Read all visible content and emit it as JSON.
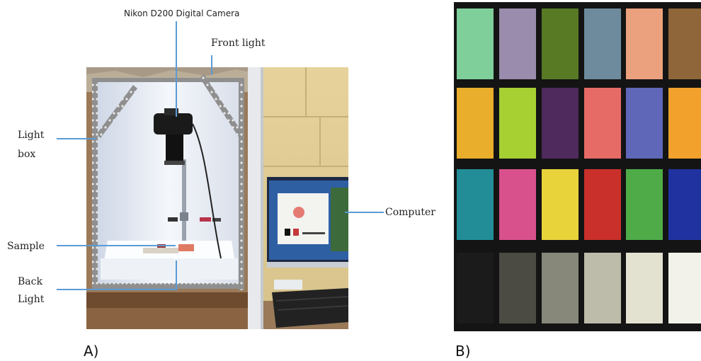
{
  "panel_a": {
    "letter": "A)",
    "labels": {
      "camera": "Nikon D200 Digital Camera",
      "front_light": "Front light",
      "light_box_line1": "Light",
      "light_box_line2": "box",
      "computer": "Computer",
      "sample": "Sample",
      "back_light_line1": "Back",
      "back_light_line2": "Light"
    }
  },
  "panel_b": {
    "letter": "B)",
    "patch_colors": [
      [
        "#7fcf9a",
        "#9a8cad",
        "#587a25",
        "#6d8b9d",
        "#eba17d",
        "#8f6639"
      ],
      [
        "#e9ae2c",
        "#a7d032",
        "#4e2a5d",
        "#e66b66",
        "#5f67b9",
        "#f2a12c"
      ],
      [
        "#228d96",
        "#d8518c",
        "#e8d33a",
        "#c9302b",
        "#4eab48",
        "#2032a0"
      ],
      [
        "#1b1b1b",
        "#4b4b44",
        "#87877a",
        "#bdbcaa",
        "#e3e2d1",
        "#f2f2ea"
      ]
    ]
  },
  "colors": {
    "leader_line": "#5b9bd5"
  }
}
